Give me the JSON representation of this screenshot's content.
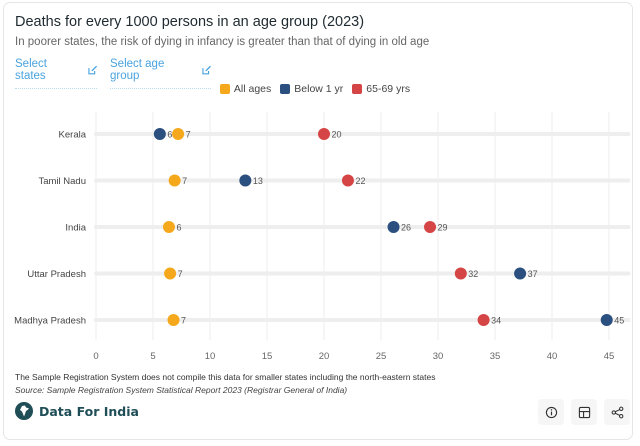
{
  "header": {
    "title": "Deaths for every 1000 persons in an age group (2023)",
    "subtitle": "In poorer states, the risk of dying in infancy is greater than that of dying in old age"
  },
  "controls": {
    "select_states_label": "Select states",
    "select_age_label": "Select age group"
  },
  "legend": [
    {
      "label": "All ages",
      "color": "#f5a81c"
    },
    {
      "label": "Below 1 yr",
      "color": "#2b4f7e"
    },
    {
      "label": "65-69 yrs",
      "color": "#d64545"
    }
  ],
  "chart_data": {
    "type": "scatter",
    "subtype": "dot-plot",
    "title": "Deaths for every 1000 persons in an age group (2023)",
    "xlabel": "",
    "ylabel": "",
    "xlim": [
      0,
      47
    ],
    "xticks": [
      0,
      5,
      10,
      15,
      20,
      25,
      30,
      35,
      40,
      45
    ],
    "grid": true,
    "legend_position": "top-center",
    "categories": [
      "Kerala",
      "Tamil Nadu",
      "India",
      "Uttar Pradesh",
      "Madhya Pradesh"
    ],
    "series": [
      {
        "name": "All ages",
        "color": "#f5a81c",
        "values": [
          7.2,
          6.9,
          6.4,
          6.5,
          6.8
        ],
        "labels": [
          "7",
          "7",
          "6",
          "7",
          "7"
        ]
      },
      {
        "name": "Below 1 yr",
        "color": "#2b4f7e",
        "values": [
          5.6,
          13.1,
          26.1,
          37.2,
          44.8
        ],
        "labels": [
          "6",
          "13",
          "26",
          "37",
          "45"
        ]
      },
      {
        "name": "65-69 yrs",
        "color": "#d64545",
        "values": [
          20.0,
          22.1,
          29.3,
          32.0,
          34.0
        ],
        "labels": [
          "20",
          "22",
          "29",
          "32",
          "34"
        ]
      }
    ]
  },
  "footer": {
    "note": "The Sample Registration System does not compile this data for smaller states including the north-eastern states",
    "source": "Source: Sample Registration System Statistical Report 2023 (Registrar General of India)",
    "brand": "Data For India",
    "actions": [
      "info",
      "table",
      "share"
    ]
  }
}
